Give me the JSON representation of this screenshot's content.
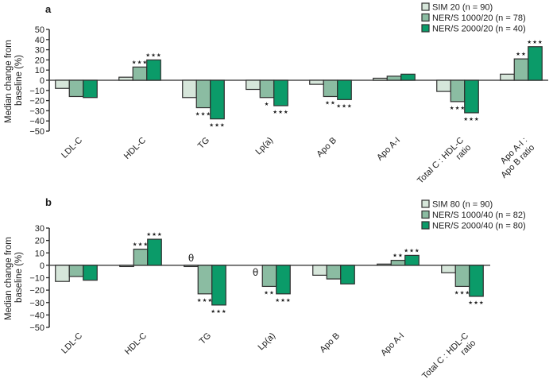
{
  "colors": {
    "light": "#d6e6da",
    "medium": "#8bbca2",
    "dark": "#0b9b69",
    "bar_outline": "#2e2e2e",
    "axis": "#2b2b2b",
    "zero_line": "#4d4d4d",
    "text": "#1c1c1c"
  },
  "chart_data": [
    {
      "type": "bar",
      "panel_label": "a",
      "title": "",
      "xlabel": "",
      "ylabel": "Median change from baseline (%)",
      "ylabel_lines": [
        "Median change from",
        "baseline (%)"
      ],
      "ylim": [
        -50,
        50
      ],
      "ytick_step": 10,
      "grid": false,
      "legend_position": "top-right",
      "categories": [
        "LDL-C",
        "HDL-C",
        "TG",
        "Lp(a)",
        "Apo B",
        "Apo A-I",
        "Total C : HDL-C ratio",
        "Apo A-I : Apo B ratio"
      ],
      "category_label_lines": [
        [
          "LDL-C"
        ],
        [
          "HDL-C"
        ],
        [
          "TG"
        ],
        [
          "Lp(a)"
        ],
        [
          "Apo B"
        ],
        [
          "Apo A-I"
        ],
        [
          "Total C : HDL-C",
          "ratio"
        ],
        [
          "Apo A-I :",
          "Apo B ratio"
        ]
      ],
      "series": [
        {
          "name": "SIM 20 (n = 90)",
          "color_key": "light",
          "values": [
            -8,
            3,
            -17,
            -9,
            -4,
            2,
            -11,
            6
          ],
          "sig": [
            "",
            "",
            "",
            "",
            "",
            "",
            "",
            ""
          ]
        },
        {
          "name": "NER/S 1000/20 (n = 78)",
          "color_key": "medium",
          "values": [
            -16,
            13,
            -27,
            -17,
            -16,
            4,
            -21,
            21
          ],
          "sig": [
            "",
            "***",
            "***",
            "*",
            "**",
            "",
            "***",
            "**"
          ]
        },
        {
          "name": "NER/S 2000/20 (n = 40)",
          "color_key": "dark",
          "values": [
            -17,
            20,
            -38,
            -25,
            -19,
            6,
            -32,
            33
          ],
          "sig": [
            "",
            "***",
            "***",
            "***",
            "***",
            "",
            "***",
            "***"
          ]
        }
      ],
      "annotations": []
    },
    {
      "type": "bar",
      "panel_label": "b",
      "title": "",
      "xlabel": "",
      "ylabel": "Median change from baseline (%)",
      "ylabel_lines": [
        "Median change from",
        "baseline (%)"
      ],
      "ylim": [
        -50,
        30
      ],
      "ytick_step": 10,
      "grid": false,
      "legend_position": "top-right",
      "categories": [
        "LDL-C",
        "HDL-C",
        "TG",
        "Lp(a)",
        "Apo B",
        "Apo A-I",
        "Total C : HDL-C ratio"
      ],
      "category_label_lines": [
        [
          "LDL-C"
        ],
        [
          "HDL-C"
        ],
        [
          "TG"
        ],
        [
          "Lp(a)"
        ],
        [
          "Apo B"
        ],
        [
          "Apo A-I"
        ],
        [
          "Total C : HDL-C",
          "ratio"
        ]
      ],
      "series": [
        {
          "name": "SIM 80 (n = 90)",
          "color_key": "light",
          "values": [
            -13,
            -1,
            -1,
            0,
            -8,
            1,
            -6
          ],
          "sig": [
            "",
            "",
            "",
            "",
            "",
            "",
            ""
          ]
        },
        {
          "name": "NER/S 1000/40 (n = 82)",
          "color_key": "medium",
          "values": [
            -9,
            13,
            -23,
            -17,
            -11,
            4,
            -17
          ],
          "sig": [
            "",
            "***",
            "***",
            "**",
            "",
            "**",
            "***"
          ]
        },
        {
          "name": "NER/S 2000/40 (n = 80)",
          "color_key": "dark",
          "values": [
            -12,
            21,
            -32,
            -23,
            -15,
            8,
            -25
          ],
          "sig": [
            "",
            "***",
            "***",
            "***",
            "",
            "***",
            "***"
          ]
        }
      ],
      "annotations": [
        {
          "text": "θ",
          "category_index": 2,
          "series_index": 0,
          "placement": "above"
        },
        {
          "text": "θ",
          "category_index": 3,
          "series_index": 0,
          "placement": "below"
        }
      ]
    }
  ]
}
